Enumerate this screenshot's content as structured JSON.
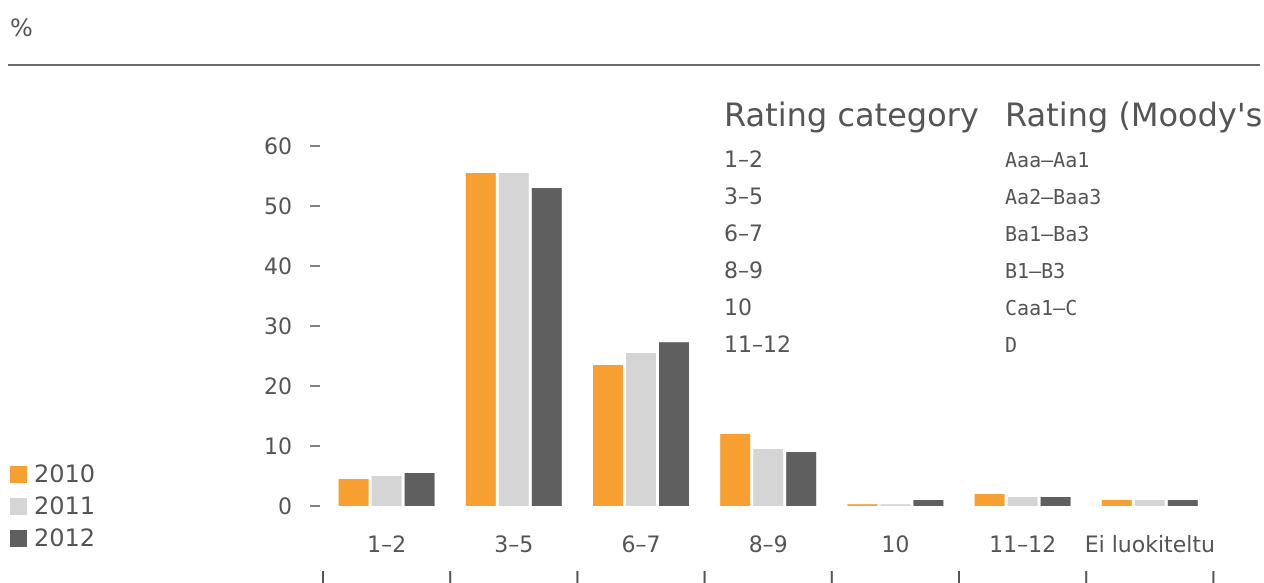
{
  "unit_label": "%",
  "legend": [
    {
      "label": "2010",
      "color": "#f7a031"
    },
    {
      "label": "2011",
      "color": "#d5d5d5"
    },
    {
      "label": "2012",
      "color": "#5f5f5f"
    }
  ],
  "reference_table": {
    "headers": [
      "Rating category",
      "Rating (Moody's)"
    ],
    "rows": [
      [
        "1–2",
        "Aaa–Aa1"
      ],
      [
        "3–5",
        "Aa2–Baa3"
      ],
      [
        "6–7",
        "Ba1–Ba3"
      ],
      [
        "8–9",
        "B1–B3"
      ],
      [
        "10",
        "Caa1–C"
      ],
      [
        "11–12",
        "D"
      ]
    ]
  },
  "chart_data": {
    "type": "bar",
    "categories": [
      "1–2",
      "3–5",
      "6–7",
      "8–9",
      "10",
      "11–12",
      "Ei luokiteltu"
    ],
    "series": [
      {
        "name": "2010",
        "values": [
          4.5,
          55.5,
          23.5,
          12.0,
          0.3,
          2.0,
          1.0
        ]
      },
      {
        "name": "2011",
        "values": [
          5.0,
          55.5,
          25.5,
          9.5,
          0.3,
          1.5,
          1.0
        ]
      },
      {
        "name": "2012",
        "values": [
          5.5,
          53.0,
          27.3,
          9.0,
          1.0,
          1.5,
          1.0
        ]
      }
    ],
    "yticks": [
      0,
      10,
      20,
      30,
      40,
      50,
      60
    ],
    "ylim": [
      0,
      60
    ],
    "title": "",
    "xlabel": "",
    "ylabel": "%",
    "legend_position": "bottom-left",
    "grid": false
  }
}
